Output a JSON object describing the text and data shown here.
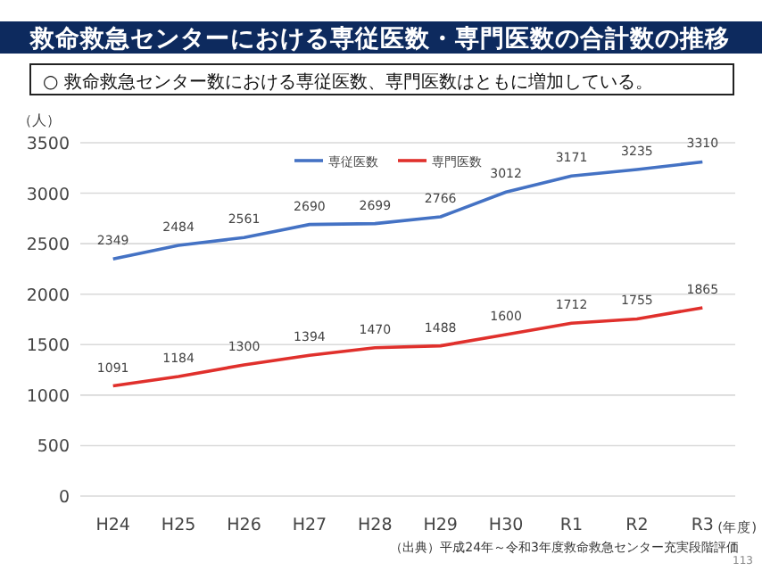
{
  "chart_data": {
    "type": "line",
    "title": "救命救急センターにおける専従医数・専門医数の合計数の推移",
    "subtitle": "○ 救命救急センター数における専従医数、専門医数はともに増加している。",
    "ylabel": "（人）",
    "xlabel": "(年度)",
    "categories": [
      "H24",
      "H25",
      "H26",
      "H27",
      "H28",
      "H29",
      "H30",
      "R1",
      "R2",
      "R3"
    ],
    "series": [
      {
        "name": "専従医数",
        "color": "#4472c4",
        "values": [
          2349,
          2484,
          2561,
          2690,
          2699,
          2766,
          3012,
          3171,
          3235,
          3310
        ]
      },
      {
        "name": "専門医数",
        "color": "#e0302c",
        "values": [
          1091,
          1184,
          1300,
          1394,
          1470,
          1488,
          1600,
          1712,
          1755,
          1865
        ]
      }
    ],
    "ylim": [
      0,
      3500
    ],
    "yticks": [
      0,
      500,
      1000,
      1500,
      2000,
      2500,
      3000,
      3500
    ],
    "grid": "y",
    "legend": "top",
    "data_labels": true,
    "marker": "none",
    "line_style": "solid",
    "annotations": [
      "（出典）平成24年～令和3年度救命救急センター充実段階評価",
      "113"
    ]
  }
}
